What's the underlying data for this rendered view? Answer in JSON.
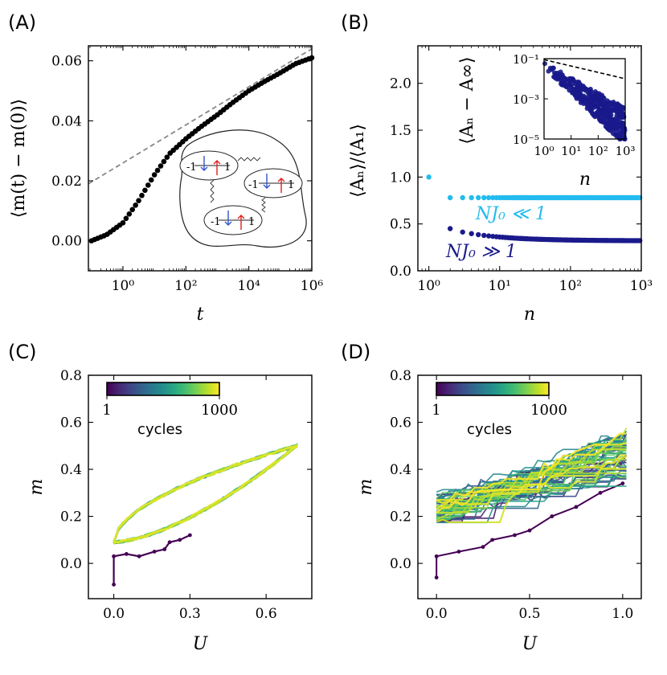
{
  "panels": {
    "a": {
      "label": "(A)"
    },
    "b": {
      "label": "(B)"
    },
    "c": {
      "label": "(C)"
    },
    "d": {
      "label": "(D)"
    }
  },
  "chart_data": [
    {
      "panel": "A",
      "type": "scatter",
      "xlabel": "t",
      "ylabel": "⟨m(t) − m(0)⟩",
      "xscale": "log",
      "xlim": [
        0.08,
        1000000
      ],
      "ylim": [
        -0.01,
        0.065
      ],
      "xticks": [
        1,
        100,
        10000,
        1000000
      ],
      "xtick_labels": [
        "10⁰",
        "10²",
        "10⁴",
        "10⁶"
      ],
      "yticks": [
        0.0,
        0.02,
        0.04,
        0.06
      ],
      "ytick_labels": [
        "0.00",
        "0.02",
        "0.04",
        "0.06"
      ],
      "series": [
        {
          "style": "markers",
          "color": "#000000",
          "x": [
            0.1,
            0.3,
            1,
            3,
            10,
            30,
            100,
            300,
            1000,
            3000,
            10000,
            30000,
            100000,
            300000,
            1000000
          ],
          "y": [
            0.0,
            0.002,
            0.006,
            0.013,
            0.022,
            0.029,
            0.034,
            0.038,
            0.042,
            0.046,
            0.05,
            0.053,
            0.056,
            0.059,
            0.061
          ]
        },
        {
          "style": "dashed",
          "color": "#888888",
          "x": [
            0.08,
            1000000
          ],
          "y": [
            0.019,
            0.064
          ]
        }
      ],
      "inset_diagram": {
        "spin_labels": [
          "-1",
          "1",
          "-1",
          "1",
          "-1",
          "1"
        ],
        "colors": {
          "down": "#3355cc",
          "up": "#e02020"
        }
      }
    },
    {
      "panel": "B",
      "type": "scatter",
      "xlabel": "n",
      "ylabel": "⟨Aₙ⟩/⟨A₁⟩",
      "xscale": "log",
      "xlim": [
        0.7,
        1000
      ],
      "ylim": [
        0.0,
        2.4
      ],
      "xticks": [
        1,
        10,
        100,
        1000
      ],
      "xtick_labels": [
        "10⁰",
        "10¹",
        "10²",
        "10³"
      ],
      "yticks": [
        0.0,
        0.5,
        1.0,
        1.5,
        2.0
      ],
      "ytick_labels": [
        "0.0",
        "0.5",
        "1.0",
        "1.5",
        "2.0"
      ],
      "series": [
        {
          "annotation": "NJ₀ ≪ 1",
          "color": "#22bbee",
          "first": 1.0,
          "plateau": 0.78
        },
        {
          "annotation": "NJ₀ ≫ 1",
          "color": "#1a1a8c",
          "first": 0.45,
          "plateau": 0.32
        }
      ],
      "inset": {
        "xlabel": "n",
        "ylabel": "⟨Aₙ − A∞⟩",
        "xscale": "log",
        "yscale": "log",
        "xtick_labels": [
          "10⁰",
          "10¹",
          "10²",
          "10³"
        ],
        "ytick_labels": [
          "10⁻¹",
          "10⁻³",
          "10⁻⁵"
        ],
        "marker_color": "#1a1a8c",
        "reference_line": "dashed"
      }
    },
    {
      "panel": "C",
      "type": "line",
      "xlabel": "U",
      "ylabel": "m",
      "xlim": [
        -0.1,
        0.78
      ],
      "ylim": [
        -0.15,
        0.8
      ],
      "xticks": [
        0.0,
        0.3,
        0.6
      ],
      "xtick_labels": [
        "0.0",
        "0.3",
        "0.6"
      ],
      "yticks": [
        0.0,
        0.2,
        0.4,
        0.6,
        0.8
      ],
      "ytick_labels": [
        "0.0",
        "0.2",
        "0.4",
        "0.6",
        "0.8"
      ],
      "colorbar": {
        "min_label": "1",
        "max_label": "1000",
        "title": "cycles",
        "colormap": "viridis"
      },
      "loop": {
        "u_max": 0.72,
        "m_bottom": 0.09,
        "m_top": 0.5
      }
    },
    {
      "panel": "D",
      "type": "line",
      "xlabel": "U",
      "ylabel": "m",
      "xlim": [
        -0.1,
        1.1
      ],
      "ylim": [
        -0.15,
        0.8
      ],
      "xticks": [
        0.0,
        0.5,
        1.0
      ],
      "xtick_labels": [
        "0.0",
        "0.5",
        "1.0"
      ],
      "yticks": [
        0.0,
        0.2,
        0.4,
        0.6,
        0.8
      ],
      "ytick_labels": [
        "0.0",
        "0.2",
        "0.4",
        "0.6",
        "0.8"
      ],
      "colorbar": {
        "min_label": "1",
        "max_label": "1000",
        "title": "cycles",
        "colormap": "viridis"
      },
      "loop": {
        "u_max": 1.02,
        "m_bottom": 0.22,
        "m_top": 0.42
      }
    }
  ]
}
